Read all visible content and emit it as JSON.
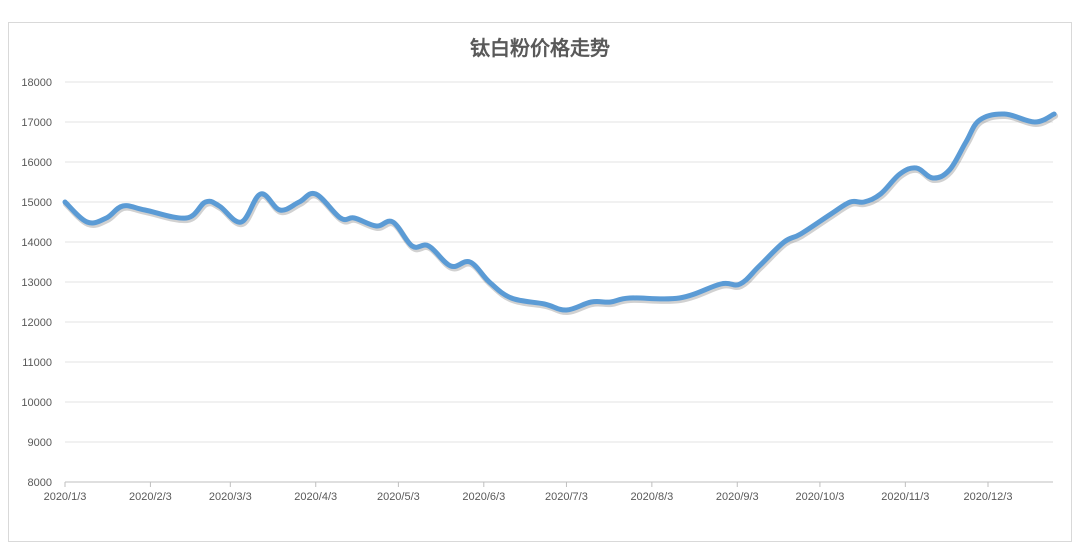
{
  "chart_data": {
    "type": "line",
    "title": "钛白粉价格走势",
    "xlabel": "",
    "ylabel": "",
    "ylim": [
      8000,
      18000
    ],
    "yticks": [
      8000,
      9000,
      10000,
      11000,
      12000,
      13000,
      14000,
      15000,
      16000,
      17000,
      18000
    ],
    "xticks": [
      {
        "date": "2020-01-03",
        "label": "2020/1/3"
      },
      {
        "date": "2020-02-03",
        "label": "2020/2/3"
      },
      {
        "date": "2020-03-03",
        "label": "2020/3/3"
      },
      {
        "date": "2020-04-03",
        "label": "2020/4/3"
      },
      {
        "date": "2020-05-03",
        "label": "2020/5/3"
      },
      {
        "date": "2020-06-03",
        "label": "2020/6/3"
      },
      {
        "date": "2020-07-03",
        "label": "2020/7/3"
      },
      {
        "date": "2020-08-03",
        "label": "2020/8/3"
      },
      {
        "date": "2020-09-03",
        "label": "2020/9/3"
      },
      {
        "date": "2020-10-03",
        "label": "2020/10/3"
      },
      {
        "date": "2020-11-03",
        "label": "2020/11/3"
      },
      {
        "date": "2020-12-03",
        "label": "2020/12/3"
      }
    ],
    "grid": true,
    "legend": "none",
    "series_color": "#5b9bd5",
    "series": [
      {
        "points": [
          [
            "2020-01-03",
            15000
          ],
          [
            "2020-01-11",
            14500
          ],
          [
            "2020-01-18",
            14600
          ],
          [
            "2020-01-24",
            14900
          ],
          [
            "2020-02-01",
            14800
          ],
          [
            "2020-02-16",
            14600
          ],
          [
            "2020-02-23",
            15000
          ],
          [
            "2020-02-28",
            14900
          ],
          [
            "2020-03-07",
            14500
          ],
          [
            "2020-03-14",
            15200
          ],
          [
            "2020-03-21",
            14800
          ],
          [
            "2020-03-28",
            15000
          ],
          [
            "2020-04-03",
            15200
          ],
          [
            "2020-04-12",
            14600
          ],
          [
            "2020-04-17",
            14600
          ],
          [
            "2020-04-25",
            14400
          ],
          [
            "2020-05-01",
            14500
          ],
          [
            "2020-05-08",
            13900
          ],
          [
            "2020-05-14",
            13900
          ],
          [
            "2020-05-22",
            13400
          ],
          [
            "2020-05-29",
            13500
          ],
          [
            "2020-06-05",
            13000
          ],
          [
            "2020-06-13",
            12600
          ],
          [
            "2020-06-25",
            12450
          ],
          [
            "2020-07-03",
            12300
          ],
          [
            "2020-07-12",
            12500
          ],
          [
            "2020-07-19",
            12500
          ],
          [
            "2020-07-26",
            12600
          ],
          [
            "2020-08-13",
            12600
          ],
          [
            "2020-08-28",
            12950
          ],
          [
            "2020-09-04",
            12950
          ],
          [
            "2020-09-11",
            13400
          ],
          [
            "2020-09-20",
            14000
          ],
          [
            "2020-09-26",
            14200
          ],
          [
            "2020-10-07",
            14700
          ],
          [
            "2020-10-14",
            15000
          ],
          [
            "2020-10-19",
            15000
          ],
          [
            "2020-10-25",
            15200
          ],
          [
            "2020-11-01",
            15700
          ],
          [
            "2020-11-07",
            15850
          ],
          [
            "2020-11-13",
            15600
          ],
          [
            "2020-11-19",
            15800
          ],
          [
            "2020-11-25",
            16500
          ],
          [
            "2020-11-30",
            17050
          ],
          [
            "2020-12-09",
            17200
          ],
          [
            "2020-12-20",
            17000
          ],
          [
            "2020-12-27",
            17200
          ]
        ]
      }
    ]
  }
}
